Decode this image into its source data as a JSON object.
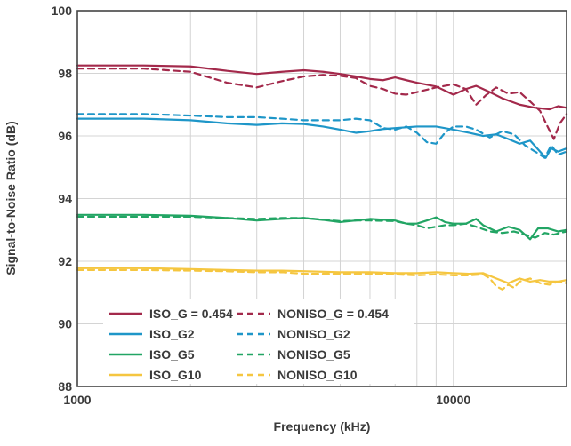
{
  "chart_data": {
    "type": "line",
    "title": "",
    "xlabel": "Frequency (kHz)",
    "ylabel": "Signal-to-Noise Ratio (dB)",
    "xscale": "log",
    "xlim": [
      1000,
      20000
    ],
    "ylim": [
      88,
      100
    ],
    "xticks": [
      {
        "value": 1000,
        "label": "1000"
      },
      {
        "value": 10000,
        "label": "10000"
      }
    ],
    "yticks": [
      {
        "value": 88,
        "label": "88"
      },
      {
        "value": 90,
        "label": "90"
      },
      {
        "value": 92,
        "label": "92"
      },
      {
        "value": 94,
        "label": "94"
      },
      {
        "value": 96,
        "label": "96"
      },
      {
        "value": 98,
        "label": "98"
      },
      {
        "value": 100,
        "label": "100"
      }
    ],
    "grid": true,
    "legend_position": "bottom-left",
    "series": [
      {
        "name": "ISO_G = 0.454",
        "color": "#a3294b",
        "dash": "solid",
        "points": [
          [
            1000,
            98.25
          ],
          [
            1500,
            98.25
          ],
          [
            2000,
            98.22
          ],
          [
            2500,
            98.08
          ],
          [
            3000,
            97.98
          ],
          [
            3500,
            98.05
          ],
          [
            4000,
            98.1
          ],
          [
            4500,
            98.05
          ],
          [
            5000,
            97.98
          ],
          [
            5500,
            97.9
          ],
          [
            6000,
            97.82
          ],
          [
            6500,
            97.78
          ],
          [
            7000,
            97.87
          ],
          [
            7500,
            97.78
          ],
          [
            8000,
            97.7
          ],
          [
            9000,
            97.58
          ],
          [
            10000,
            97.32
          ],
          [
            10800,
            97.5
          ],
          [
            11500,
            97.6
          ],
          [
            12500,
            97.4
          ],
          [
            13500,
            97.2
          ],
          [
            15000,
            97.0
          ],
          [
            16500,
            96.9
          ],
          [
            18000,
            96.85
          ],
          [
            19000,
            96.95
          ],
          [
            20000,
            96.9
          ]
        ]
      },
      {
        "name": "NONISO_G = 0.454",
        "color": "#a3294b",
        "dash": "dashed",
        "points": [
          [
            1000,
            98.15
          ],
          [
            1500,
            98.15
          ],
          [
            2000,
            98.05
          ],
          [
            2500,
            97.7
          ],
          [
            3000,
            97.55
          ],
          [
            3500,
            97.75
          ],
          [
            4000,
            97.9
          ],
          [
            4500,
            97.95
          ],
          [
            5000,
            97.92
          ],
          [
            5500,
            97.85
          ],
          [
            6000,
            97.6
          ],
          [
            6500,
            97.5
          ],
          [
            7000,
            97.35
          ],
          [
            7500,
            97.32
          ],
          [
            8000,
            97.4
          ],
          [
            9000,
            97.55
          ],
          [
            10000,
            97.65
          ],
          [
            10800,
            97.5
          ],
          [
            11500,
            97.0
          ],
          [
            12200,
            97.3
          ],
          [
            13000,
            97.55
          ],
          [
            14000,
            97.35
          ],
          [
            15000,
            97.4
          ],
          [
            16000,
            97.1
          ],
          [
            17000,
            96.8
          ],
          [
            17800,
            96.3
          ],
          [
            18500,
            95.9
          ],
          [
            19200,
            96.4
          ],
          [
            20000,
            96.7
          ]
        ]
      },
      {
        "name": "ISO_G2",
        "color": "#1e96c8",
        "dash": "solid",
        "points": [
          [
            1000,
            96.55
          ],
          [
            1500,
            96.55
          ],
          [
            2000,
            96.5
          ],
          [
            2500,
            96.4
          ],
          [
            3000,
            96.35
          ],
          [
            3500,
            96.4
          ],
          [
            4000,
            96.38
          ],
          [
            4500,
            96.3
          ],
          [
            5000,
            96.2
          ],
          [
            5500,
            96.1
          ],
          [
            6000,
            96.15
          ],
          [
            6500,
            96.22
          ],
          [
            7000,
            96.25
          ],
          [
            8000,
            96.3
          ],
          [
            9000,
            96.3
          ],
          [
            10000,
            96.2
          ],
          [
            11000,
            96.1
          ],
          [
            12000,
            96.0
          ],
          [
            13000,
            96.05
          ],
          [
            14000,
            95.9
          ],
          [
            15000,
            95.75
          ],
          [
            16000,
            95.85
          ],
          [
            17000,
            95.5
          ],
          [
            17600,
            95.3
          ],
          [
            18200,
            95.6
          ],
          [
            19000,
            95.5
          ],
          [
            20000,
            95.6
          ]
        ]
      },
      {
        "name": "NONISO_G2",
        "color": "#1e96c8",
        "dash": "dashed",
        "points": [
          [
            1000,
            96.7
          ],
          [
            1500,
            96.7
          ],
          [
            2000,
            96.65
          ],
          [
            2500,
            96.6
          ],
          [
            3000,
            96.6
          ],
          [
            3500,
            96.55
          ],
          [
            4000,
            96.5
          ],
          [
            5000,
            96.5
          ],
          [
            5500,
            96.55
          ],
          [
            6000,
            96.5
          ],
          [
            6500,
            96.25
          ],
          [
            7000,
            96.2
          ],
          [
            7500,
            96.3
          ],
          [
            8000,
            96.1
          ],
          [
            8500,
            95.8
          ],
          [
            9000,
            95.75
          ],
          [
            9500,
            96.1
          ],
          [
            10000,
            96.3
          ],
          [
            10800,
            96.3
          ],
          [
            11500,
            96.2
          ],
          [
            12500,
            95.95
          ],
          [
            13500,
            96.15
          ],
          [
            14500,
            96.05
          ],
          [
            15500,
            95.7
          ],
          [
            16500,
            95.5
          ],
          [
            17500,
            95.3
          ],
          [
            18200,
            95.7
          ],
          [
            19000,
            95.4
          ],
          [
            20000,
            95.5
          ]
        ]
      },
      {
        "name": "ISO_G5",
        "color": "#22a564",
        "dash": "solid",
        "points": [
          [
            1000,
            93.48
          ],
          [
            1500,
            93.48
          ],
          [
            2000,
            93.45
          ],
          [
            2500,
            93.38
          ],
          [
            3000,
            93.3
          ],
          [
            3500,
            93.35
          ],
          [
            4000,
            93.38
          ],
          [
            4500,
            93.32
          ],
          [
            5000,
            93.25
          ],
          [
            5500,
            93.3
          ],
          [
            6000,
            93.35
          ],
          [
            7000,
            93.3
          ],
          [
            7500,
            93.2
          ],
          [
            8000,
            93.2
          ],
          [
            8500,
            93.3
          ],
          [
            9000,
            93.4
          ],
          [
            9500,
            93.25
          ],
          [
            10000,
            93.2
          ],
          [
            10800,
            93.2
          ],
          [
            11500,
            93.35
          ],
          [
            12000,
            93.15
          ],
          [
            13000,
            92.95
          ],
          [
            14000,
            93.1
          ],
          [
            15000,
            93.0
          ],
          [
            16000,
            92.7
          ],
          [
            16800,
            93.05
          ],
          [
            17800,
            93.05
          ],
          [
            19000,
            92.95
          ],
          [
            20000,
            93.0
          ]
        ]
      },
      {
        "name": "NONISO_G5",
        "color": "#22a564",
        "dash": "dashed",
        "points": [
          [
            1000,
            93.42
          ],
          [
            1500,
            93.42
          ],
          [
            2000,
            93.42
          ],
          [
            2500,
            93.38
          ],
          [
            3000,
            93.35
          ],
          [
            3500,
            93.38
          ],
          [
            4000,
            93.38
          ],
          [
            4500,
            93.33
          ],
          [
            5000,
            93.28
          ],
          [
            5500,
            93.3
          ],
          [
            6000,
            93.3
          ],
          [
            7000,
            93.28
          ],
          [
            7500,
            93.2
          ],
          [
            8000,
            93.15
          ],
          [
            8500,
            93.05
          ],
          [
            9000,
            93.1
          ],
          [
            9500,
            93.15
          ],
          [
            10000,
            93.15
          ],
          [
            10800,
            93.2
          ],
          [
            11500,
            93.1
          ],
          [
            12500,
            92.95
          ],
          [
            13500,
            92.9
          ],
          [
            14500,
            92.95
          ],
          [
            15500,
            92.85
          ],
          [
            16500,
            92.75
          ],
          [
            17500,
            92.9
          ],
          [
            18500,
            92.85
          ],
          [
            20000,
            92.95
          ]
        ]
      },
      {
        "name": "ISO_G10",
        "color": "#f5c640",
        "dash": "solid",
        "points": [
          [
            1000,
            91.78
          ],
          [
            1500,
            91.78
          ],
          [
            2000,
            91.75
          ],
          [
            2500,
            91.72
          ],
          [
            3000,
            91.7
          ],
          [
            3500,
            91.7
          ],
          [
            4000,
            91.68
          ],
          [
            5000,
            91.65
          ],
          [
            6000,
            91.65
          ],
          [
            7000,
            91.62
          ],
          [
            8000,
            91.62
          ],
          [
            9000,
            91.65
          ],
          [
            10000,
            91.62
          ],
          [
            11000,
            91.6
          ],
          [
            12000,
            91.62
          ],
          [
            13000,
            91.45
          ],
          [
            14000,
            91.3
          ],
          [
            15000,
            91.45
          ],
          [
            16000,
            91.35
          ],
          [
            17000,
            91.4
          ],
          [
            18000,
            91.35
          ],
          [
            19000,
            91.35
          ],
          [
            20000,
            91.4
          ]
        ]
      },
      {
        "name": "NONISO_G10",
        "color": "#f5c640",
        "dash": "dashed",
        "points": [
          [
            1000,
            91.72
          ],
          [
            1500,
            91.72
          ],
          [
            2000,
            91.7
          ],
          [
            2500,
            91.68
          ],
          [
            3000,
            91.65
          ],
          [
            3500,
            91.65
          ],
          [
            4000,
            91.6
          ],
          [
            5000,
            91.6
          ],
          [
            6000,
            91.6
          ],
          [
            7000,
            91.58
          ],
          [
            8000,
            91.55
          ],
          [
            9000,
            91.58
          ],
          [
            10000,
            91.55
          ],
          [
            11000,
            91.55
          ],
          [
            12000,
            91.58
          ],
          [
            12500,
            91.45
          ],
          [
            13000,
            91.2
          ],
          [
            13500,
            91.1
          ],
          [
            14000,
            91.25
          ],
          [
            14500,
            91.15
          ],
          [
            15000,
            91.35
          ],
          [
            16000,
            91.45
          ],
          [
            17000,
            91.3
          ],
          [
            18000,
            91.25
          ],
          [
            19000,
            91.35
          ],
          [
            20000,
            91.3
          ]
        ]
      }
    ],
    "legend": [
      {
        "label": "ISO_G = 0.454",
        "series": 0
      },
      {
        "label": "NONISO_G = 0.454",
        "series": 1
      },
      {
        "label": "ISO_G2",
        "series": 2
      },
      {
        "label": "NONISO_G2",
        "series": 3
      },
      {
        "label": "ISO_G5",
        "series": 4
      },
      {
        "label": "NONISO_G5",
        "series": 5
      },
      {
        "label": "ISO_G10",
        "series": 6
      },
      {
        "label": "NONISO_G10",
        "series": 7
      }
    ]
  }
}
